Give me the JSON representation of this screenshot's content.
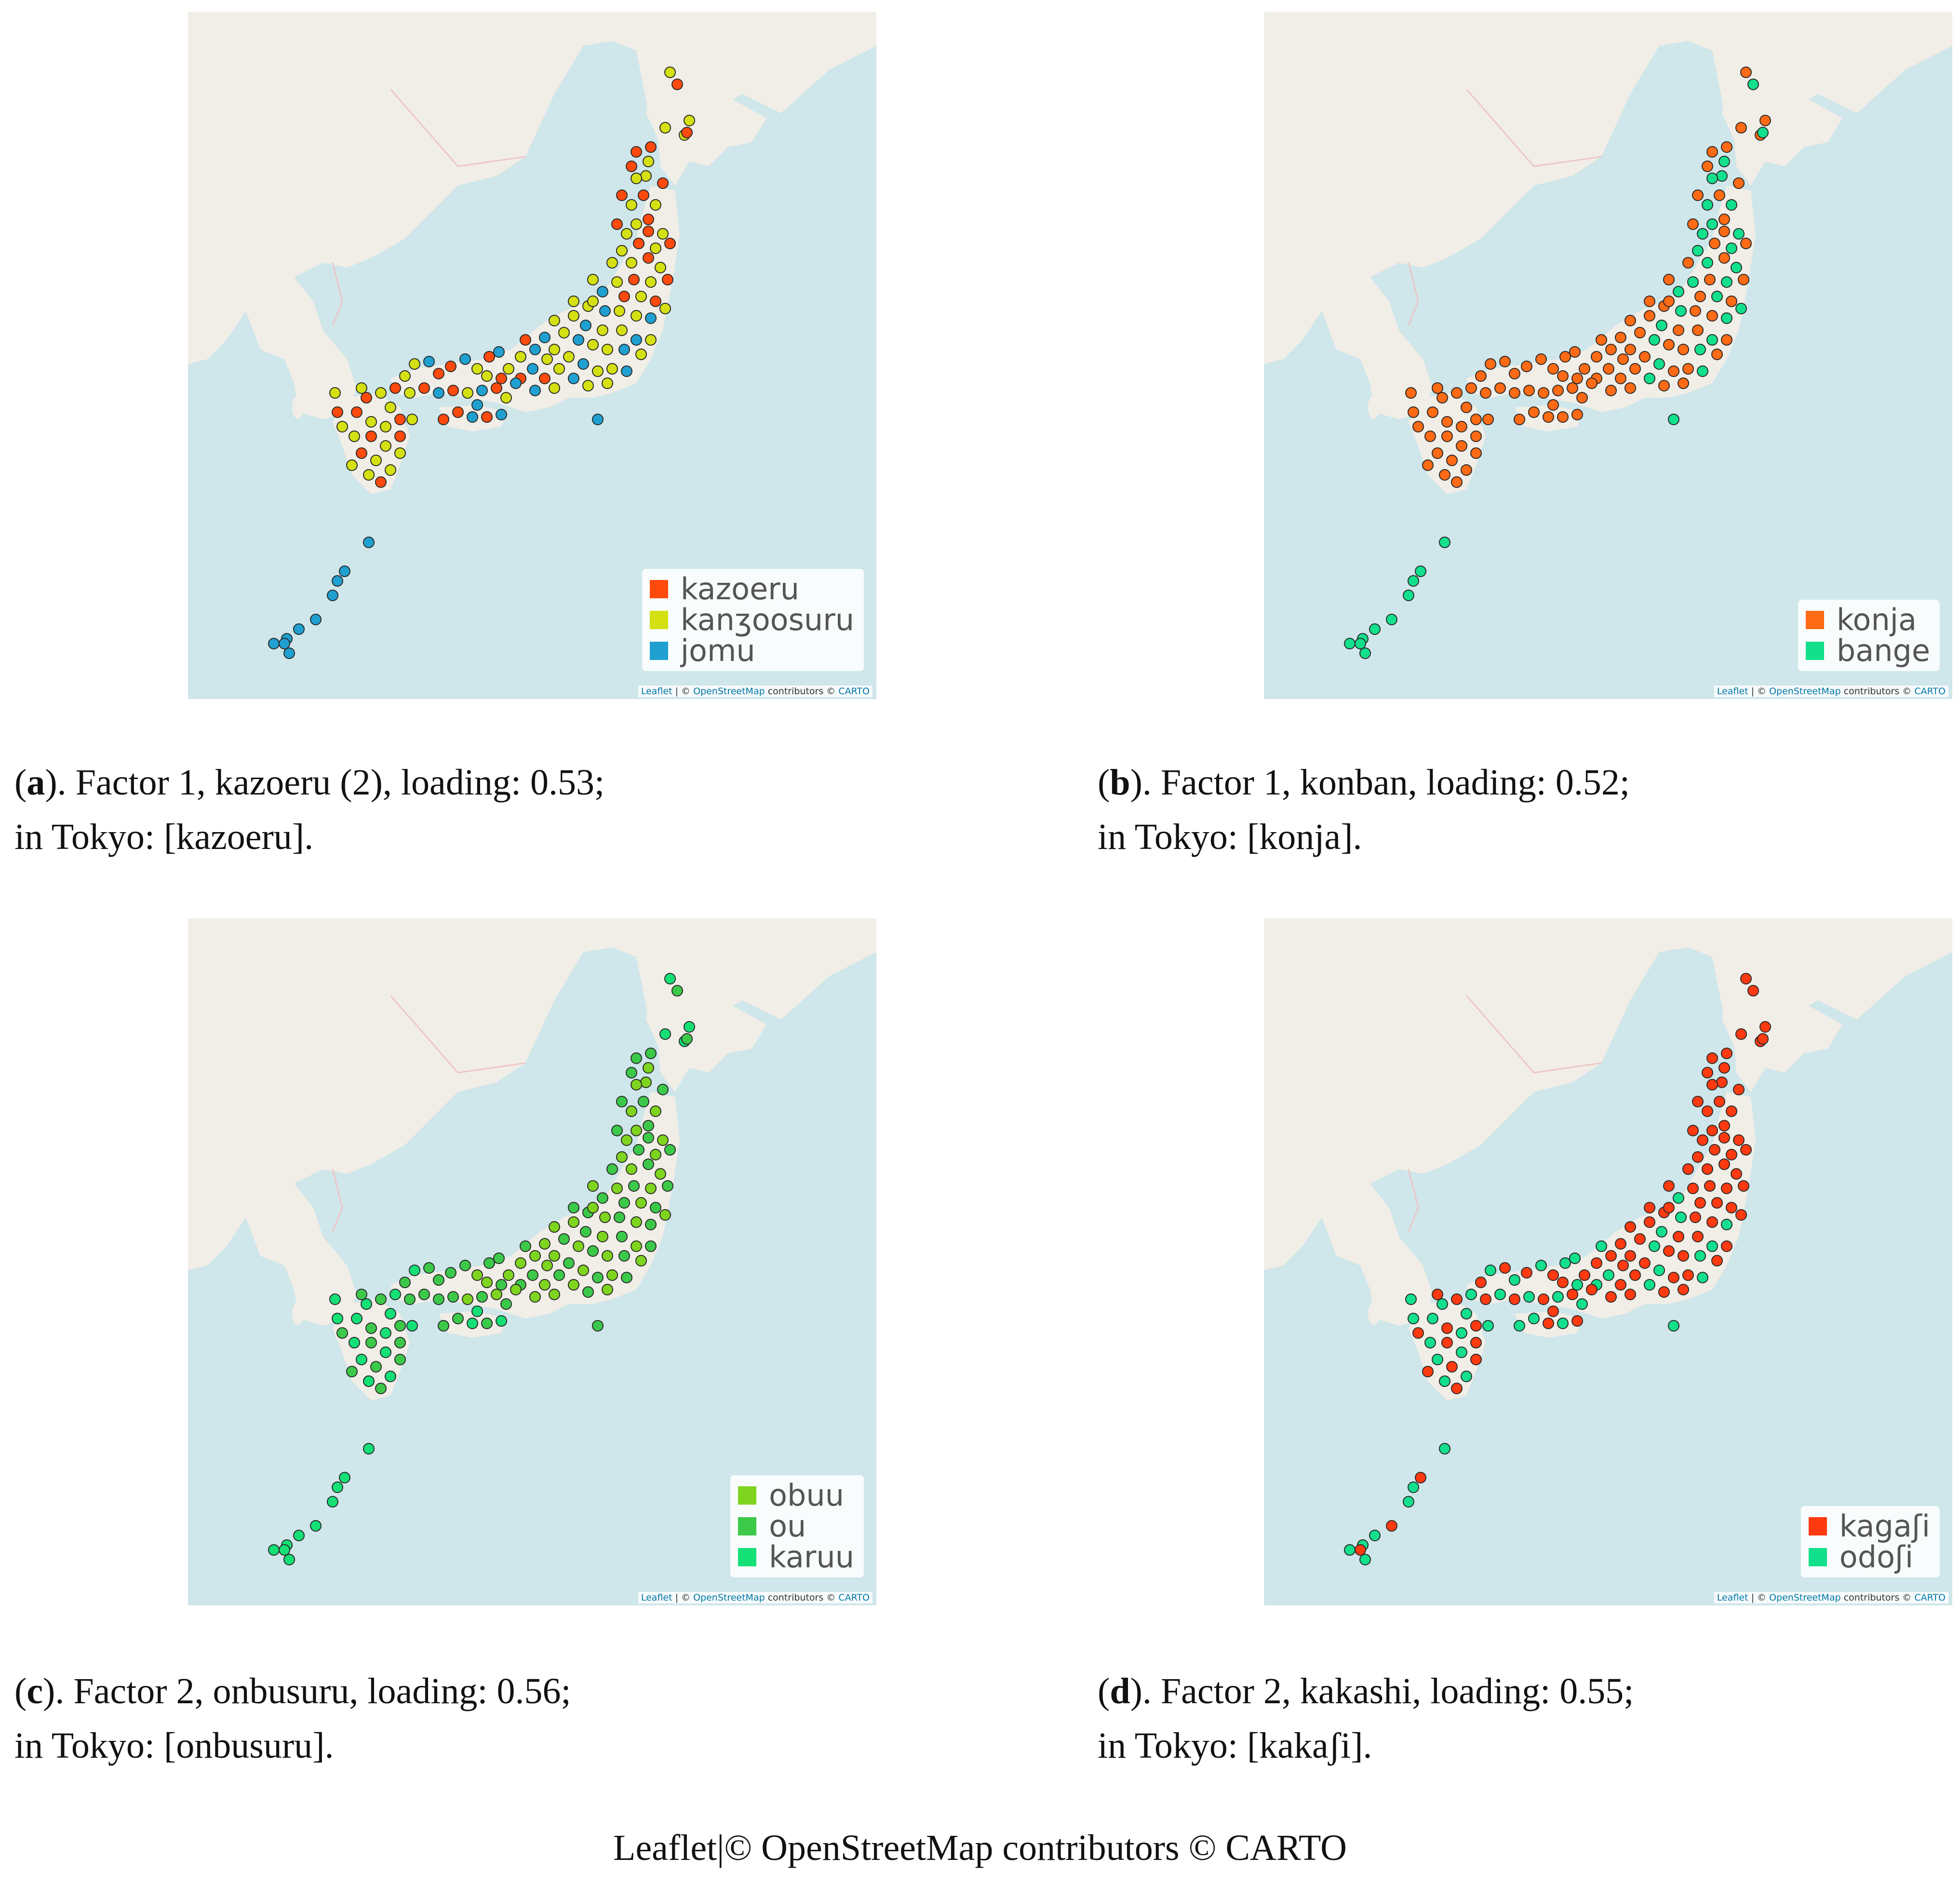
{
  "panels": [
    {
      "letter": "a",
      "caption_line1": "). Factor 1, kazoeru (2), loading: 0.53;",
      "caption_line2": "in Tokyo: [kazoeru].",
      "legend": [
        {
          "label": "kazoeru",
          "color": "#ff4a0d"
        },
        {
          "label": "kanʒoosuru",
          "color": "#d4e012"
        },
        {
          "label": "jomu",
          "color": "#1fa0d0"
        }
      ]
    },
    {
      "letter": "b",
      "caption_line1": "). Factor 1, konban, loading: 0.52;",
      "caption_line2": "in Tokyo: [konja].",
      "legend": [
        {
          "label": "konja",
          "color": "#ff6a14"
        },
        {
          "label": "bange",
          "color": "#12e08c"
        }
      ]
    },
    {
      "letter": "c",
      "caption_line1": "). Factor 2, onbusuru, loading: 0.56;",
      "caption_line2": "in Tokyo: [onbusuru].",
      "legend": [
        {
          "label": "obuu",
          "color": "#7ed41e"
        },
        {
          "label": "ou",
          "color": "#3cc94a"
        },
        {
          "label": "karuu",
          "color": "#14e076"
        }
      ]
    },
    {
      "letter": "d",
      "caption_line1": "). Factor 2, kakashi, loading: 0.55;",
      "caption_line2": "in Tokyo: [kakaʃi].",
      "legend": [
        {
          "label": "kagaʃi",
          "color": "#ff3a10"
        },
        {
          "label": "odoʃi",
          "color": "#12e08c"
        }
      ]
    }
  ],
  "map_attribution": {
    "leaflet": "Leaflet",
    "osm": "OpenStreetMap",
    "contributors": "contributors",
    "carto": "CARTO"
  },
  "footer": "Leaflet|© OpenStreetMap contributors © CARTO"
}
